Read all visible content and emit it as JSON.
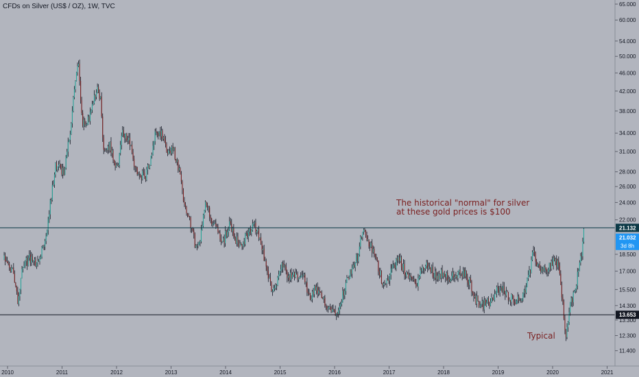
{
  "chart_data": {
    "type": "candlestick",
    "title": "CFDs on Silver (US$ / OZ), 1W, TVC",
    "xlabel": "",
    "ylabel": "",
    "scale": "log",
    "ylim": [
      11.0,
      65.0
    ],
    "y_ticks": [
      "65.000",
      "60.000",
      "54.000",
      "50.000",
      "46.000",
      "42.000",
      "38.000",
      "34.000",
      "31.000",
      "28.000",
      "26.000",
      "24.000",
      "22.000",
      "21.132",
      "21.032",
      "18.500",
      "17.000",
      "15.500",
      "14.300",
      "13.653",
      "13.300",
      "12.300",
      "11.400"
    ],
    "y_tick_values": [
      65,
      60,
      54,
      50,
      46,
      42,
      38,
      34,
      31,
      28,
      26,
      24,
      22,
      21.132,
      21.032,
      18.5,
      17,
      15.5,
      14.3,
      13.653,
      13.3,
      12.3,
      11.4
    ],
    "x_ticks": [
      "2010",
      "2011",
      "2012",
      "2013",
      "2014",
      "2015",
      "2016",
      "2017",
      "2018",
      "2019",
      "2020",
      "2021"
    ],
    "x_tick_values": [
      2010,
      2011,
      2012,
      2013,
      2014,
      2015,
      2016,
      2017,
      2018,
      2019,
      2020,
      2021
    ],
    "grid": false,
    "price_path": [
      [
        2009.95,
        18.0
      ],
      [
        2010.1,
        17.0
      ],
      [
        2010.2,
        14.8
      ],
      [
        2010.3,
        17.5
      ],
      [
        2010.45,
        18.3
      ],
      [
        2010.55,
        17.7
      ],
      [
        2010.7,
        19.6
      ],
      [
        2010.8,
        24.0
      ],
      [
        2010.9,
        29.0
      ],
      [
        2011.05,
        28.0
      ],
      [
        2011.15,
        33.5
      ],
      [
        2011.25,
        44.0
      ],
      [
        2011.32,
        48.5
      ],
      [
        2011.38,
        36.0
      ],
      [
        2011.45,
        35.0
      ],
      [
        2011.55,
        38.0
      ],
      [
        2011.65,
        42.5
      ],
      [
        2011.72,
        40.0
      ],
      [
        2011.78,
        30.5
      ],
      [
        2011.9,
        32.0
      ],
      [
        2011.98,
        28.5
      ],
      [
        2012.05,
        29.0
      ],
      [
        2012.12,
        34.0
      ],
      [
        2012.25,
        32.5
      ],
      [
        2012.35,
        28.5
      ],
      [
        2012.45,
        27.5
      ],
      [
        2012.55,
        27.5
      ],
      [
        2012.65,
        30.0
      ],
      [
        2012.72,
        34.5
      ],
      [
        2012.85,
        33.5
      ],
      [
        2012.95,
        30.5
      ],
      [
        2013.05,
        31.5
      ],
      [
        2013.15,
        28.5
      ],
      [
        2013.25,
        24.0
      ],
      [
        2013.35,
        22.0
      ],
      [
        2013.45,
        19.6
      ],
      [
        2013.55,
        19.8
      ],
      [
        2013.65,
        24.5
      ],
      [
        2013.75,
        21.5
      ],
      [
        2013.85,
        21.0
      ],
      [
        2013.95,
        19.5
      ],
      [
        2014.1,
        21.7
      ],
      [
        2014.2,
        20.0
      ],
      [
        2014.3,
        19.3
      ],
      [
        2014.45,
        21.0
      ],
      [
        2014.55,
        21.3
      ],
      [
        2014.65,
        20.0
      ],
      [
        2014.75,
        17.5
      ],
      [
        2014.85,
        15.5
      ],
      [
        2014.95,
        16.0
      ],
      [
        2015.05,
        17.5
      ],
      [
        2015.15,
        16.5
      ],
      [
        2015.3,
        16.5
      ],
      [
        2015.45,
        16.5
      ],
      [
        2015.55,
        14.8
      ],
      [
        2015.65,
        15.5
      ],
      [
        2015.75,
        15.0
      ],
      [
        2015.85,
        14.5
      ],
      [
        2015.95,
        14.0
      ],
      [
        2016.05,
        13.9
      ],
      [
        2016.15,
        15.0
      ],
      [
        2016.3,
        17.0
      ],
      [
        2016.45,
        18.5
      ],
      [
        2016.52,
        20.8
      ],
      [
        2016.6,
        20.0
      ],
      [
        2016.7,
        19.0
      ],
      [
        2016.8,
        17.5
      ],
      [
        2016.9,
        16.0
      ],
      [
        2017.0,
        16.5
      ],
      [
        2017.1,
        17.5
      ],
      [
        2017.2,
        18.0
      ],
      [
        2017.3,
        17.0
      ],
      [
        2017.4,
        16.5
      ],
      [
        2017.5,
        15.8
      ],
      [
        2017.6,
        17.0
      ],
      [
        2017.7,
        17.5
      ],
      [
        2017.8,
        17.0
      ],
      [
        2017.9,
        16.5
      ],
      [
        2018.0,
        17.0
      ],
      [
        2018.1,
        16.5
      ],
      [
        2018.2,
        16.5
      ],
      [
        2018.3,
        16.8
      ],
      [
        2018.4,
        16.7
      ],
      [
        2018.5,
        16.0
      ],
      [
        2018.6,
        14.8
      ],
      [
        2018.7,
        14.3
      ],
      [
        2018.8,
        14.5
      ],
      [
        2018.9,
        14.6
      ],
      [
        2019.0,
        15.5
      ],
      [
        2019.1,
        15.5
      ],
      [
        2019.2,
        15.0
      ],
      [
        2019.3,
        14.8
      ],
      [
        2019.4,
        14.6
      ],
      [
        2019.5,
        15.5
      ],
      [
        2019.6,
        17.0
      ],
      [
        2019.65,
        18.5
      ],
      [
        2019.75,
        17.5
      ],
      [
        2019.85,
        17.0
      ],
      [
        2019.95,
        17.5
      ],
      [
        2020.05,
        18.0
      ],
      [
        2020.12,
        17.5
      ],
      [
        2020.2,
        14.5
      ],
      [
        2020.25,
        11.8
      ],
      [
        2020.32,
        14.2
      ],
      [
        2020.4,
        15.2
      ],
      [
        2020.45,
        16.0
      ],
      [
        2020.5,
        17.8
      ],
      [
        2020.55,
        18.5
      ],
      [
        2020.6,
        21.0
      ]
    ],
    "horizontal_lines": [
      {
        "value": 21.132,
        "label": "21.132",
        "color": "#0c3a47"
      },
      {
        "value": 13.653,
        "label": "13.653",
        "color": "#131722"
      }
    ],
    "price_labels": [
      {
        "text": "21.032",
        "sub": "3d 8h",
        "color": "#2196f3"
      }
    ],
    "annotations": [
      {
        "text": "The historical \"normal\" for silver\nat these gold prices is $100"
      },
      {
        "text": "Typical"
      }
    ],
    "colors": {
      "background": "#b2b5be",
      "up": "#26a69a",
      "down": "#7a1f1f",
      "wick": "#131722",
      "annotation": "#7a1f1f",
      "current_price": "#2196f3"
    }
  }
}
